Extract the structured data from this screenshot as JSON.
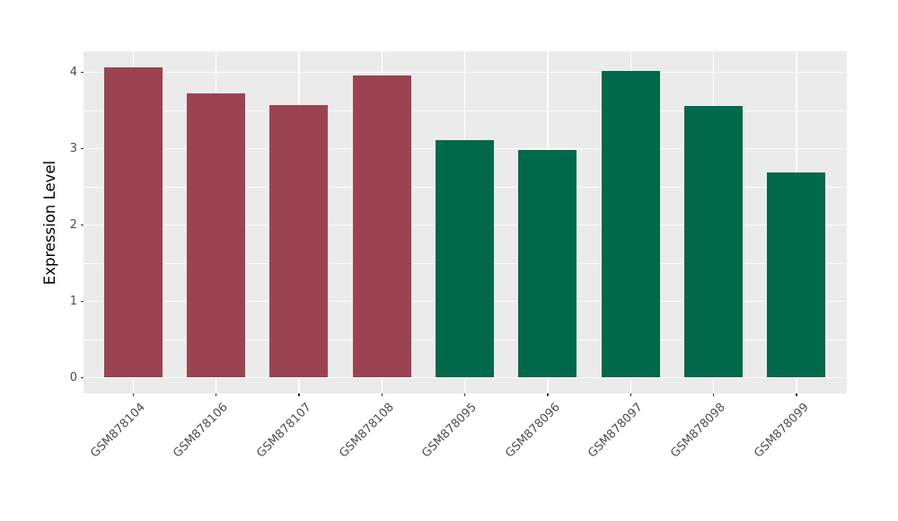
{
  "chart_data": {
    "type": "bar",
    "title": "",
    "xlabel": "",
    "ylabel": "Expression Level",
    "categories": [
      "GSM878104",
      "GSM878106",
      "GSM878107",
      "GSM878108",
      "GSM878095",
      "GSM878096",
      "GSM878097",
      "GSM878098",
      "GSM878099"
    ],
    "values": [
      4.07,
      3.72,
      3.57,
      3.96,
      3.11,
      2.98,
      4.02,
      3.56,
      2.69
    ],
    "bar_colors": [
      "#9C4351",
      "#9C4351",
      "#9C4351",
      "#9C4351",
      "#00694A",
      "#00694A",
      "#00694A",
      "#00694A",
      "#00694A"
    ],
    "yticks": [
      0,
      1,
      2,
      3,
      4
    ],
    "ylim": [
      -0.2,
      4.28
    ],
    "grid": true,
    "legend_position": "none",
    "x_label_rotation_deg": 45,
    "colors": {
      "panel_background": "#EBEBEB",
      "gridline": "#FFFFFF",
      "tick_label": "#4D4D4D",
      "axis_title": "#000000",
      "tick_mark": "#333333",
      "figure_background": "#FFFFFF"
    }
  }
}
